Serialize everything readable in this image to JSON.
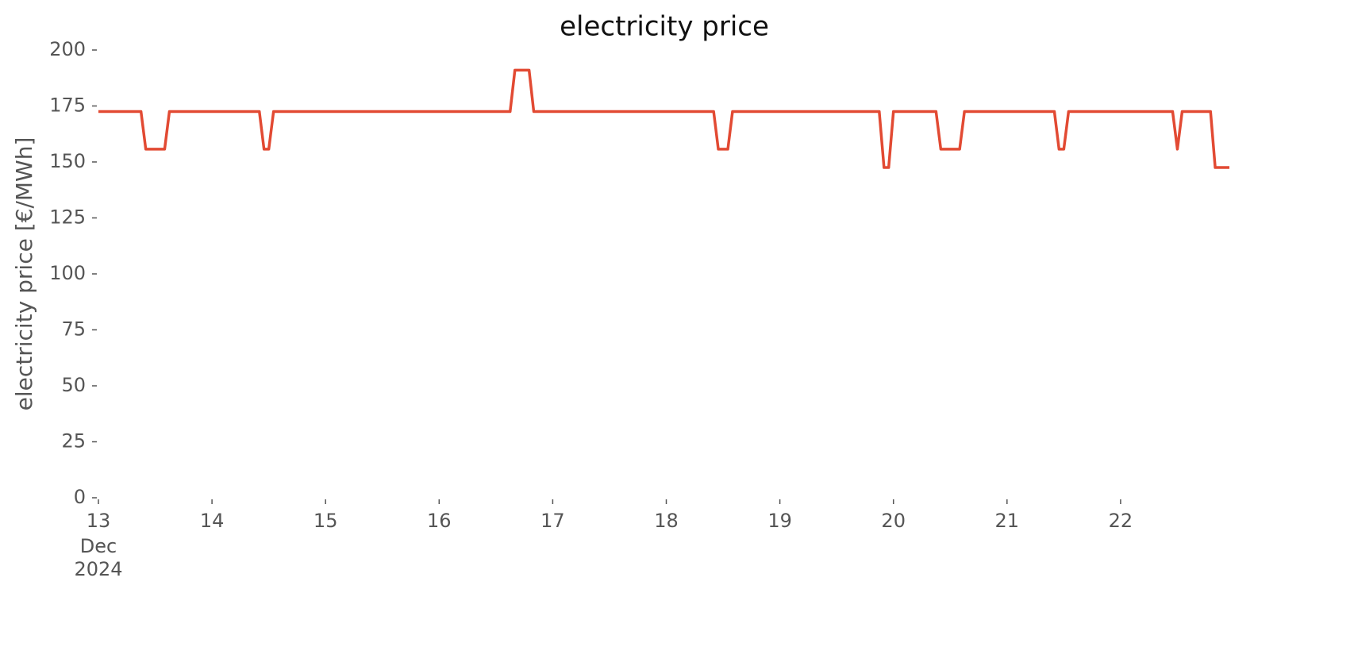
{
  "chart_data": {
    "type": "line",
    "title": "electricity price",
    "ylabel": "electricity price [€/MWh]",
    "x": [
      13,
      13.375,
      13.417,
      13.583,
      13.625,
      14.417,
      14.458,
      14.5,
      14.542,
      16.625,
      16.667,
      16.792,
      16.833,
      18.417,
      18.458,
      18.542,
      18.583,
      19.875,
      19.917,
      19.958,
      20,
      20.375,
      20.417,
      20.583,
      20.625,
      21.417,
      21.458,
      21.5,
      21.542,
      22.458,
      22.5,
      22.542,
      22.792,
      22.833,
      22.958
    ],
    "series": [
      {
        "name": "electricity price",
        "color": "#e24a33",
        "values": [
          172.5,
          172.5,
          155.7,
          155.7,
          172.5,
          172.5,
          155.7,
          155.7,
          172.5,
          172.5,
          191,
          191,
          172.5,
          172.5,
          155.7,
          155.7,
          172.5,
          172.5,
          147.5,
          147.5,
          172.5,
          172.5,
          155.7,
          155.7,
          172.5,
          172.5,
          155.7,
          155.7,
          172.5,
          172.5,
          155.7,
          172.5,
          172.5,
          147.5,
          147.5
        ]
      }
    ],
    "xlim": [
      13,
      22.958
    ],
    "xticks": [
      13,
      14,
      15,
      16,
      17,
      18,
      19,
      20,
      21,
      22
    ],
    "xtick_sublabels": [
      "Dec",
      "2024"
    ],
    "ylim": [
      0,
      200
    ],
    "yticks": [
      0,
      25,
      50,
      75,
      100,
      125,
      150,
      175,
      200
    ],
    "grid": false
  }
}
